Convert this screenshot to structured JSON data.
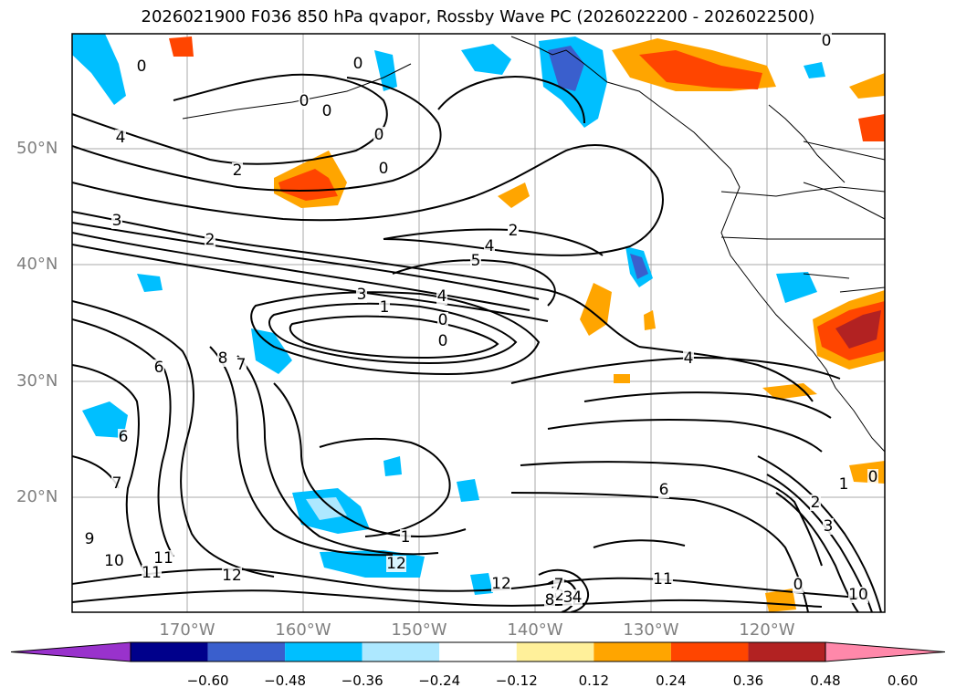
{
  "title": "2026021900 F036 850 hPa qvapor, Rossby Wave PC (2026022200 - 2026022500)",
  "lat_labels": [
    "50°N",
    "40°N",
    "30°N",
    "20°N"
  ],
  "lon_labels": [
    "170°W",
    "160°W",
    "150°W",
    "140°W",
    "130°W",
    "120°W"
  ],
  "contour_labels": [
    "0",
    "0",
    "0",
    "0",
    "0",
    "0",
    "0",
    "2",
    "2",
    "2",
    "2",
    "3",
    "3",
    "4",
    "4",
    "4",
    "5",
    "1",
    "0",
    "0",
    "6",
    "6",
    "7",
    "7",
    "8",
    "9",
    "10",
    "11",
    "11",
    "12",
    "12",
    "11",
    "12",
    "1",
    "4",
    "6",
    "2",
    "3",
    "1",
    "0",
    "0",
    "10",
    "1",
    "2",
    "3",
    "4",
    "7",
    "8"
  ],
  "colorbar": {
    "ticks": [
      "−0.60",
      "−0.48",
      "−0.36",
      "−0.24",
      "−0.12",
      "0.12",
      "0.24",
      "0.36",
      "0.48",
      "0.60"
    ],
    "colors": [
      "#9932cc",
      "#00008b",
      "#3a5fcd",
      "#00bfff",
      "#ade8ff",
      "#ffffff",
      "#fff09a",
      "#ffa500",
      "#ff4500",
      "#b22222",
      "#ff88aa"
    ]
  }
}
